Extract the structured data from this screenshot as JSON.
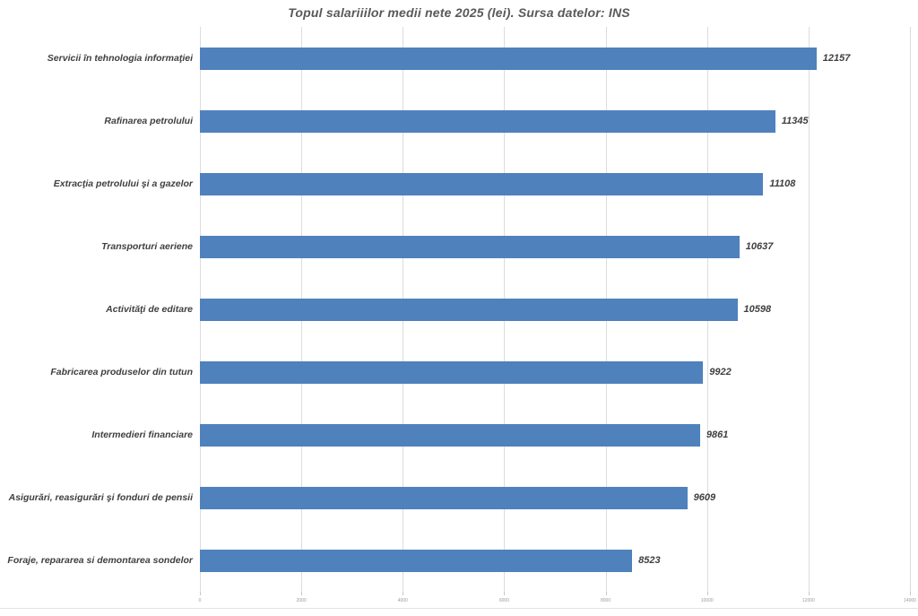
{
  "chart_data": {
    "type": "bar",
    "orientation": "horizontal",
    "title": "Topul salariiilor medii nete 2025 (lei). Sursa datelor: INS",
    "categories": [
      "Servicii în tehnologia informaţiei",
      "Rafinarea petrolului",
      "Extracţia petrolului şi a gazelor",
      "Transporturi aeriene",
      "Activităţi de editare",
      "Fabricarea produselor din tutun",
      "Intermedieri financiare",
      "Asigurări, reasigurări şi fonduri de pensii",
      "Foraje, repararea si demontarea sondelor"
    ],
    "values": [
      12157,
      11345,
      11108,
      10637,
      10598,
      9922,
      9861,
      9609,
      8523
    ],
    "value_labels": [
      "12157",
      "11345",
      "11108",
      "10637",
      "10598",
      "9922",
      "9861",
      "9609",
      "8523"
    ],
    "xlabel": "",
    "ylabel": "",
    "xlim": [
      0,
      14000
    ],
    "xticks": [
      0,
      2000,
      4000,
      6000,
      8000,
      10000,
      12000,
      14000
    ],
    "xtick_labels": [
      "0",
      "2000",
      "4000",
      "6000",
      "8000",
      "10000",
      "12000",
      "14000"
    ],
    "grid": true,
    "legend": "none",
    "value_labels_shown": true
  },
  "colors": {
    "bar": "#4F81BD",
    "title_text": "#595959",
    "category_text": "#3F3F3F",
    "value_text": "#3F3F3F",
    "gridline": "#DCDCDC",
    "tickmark": "#C8C8C8",
    "tick_text": "#9B9B9B",
    "bottom_rule": "#E3E3E3",
    "background": "#FFFFFF"
  }
}
